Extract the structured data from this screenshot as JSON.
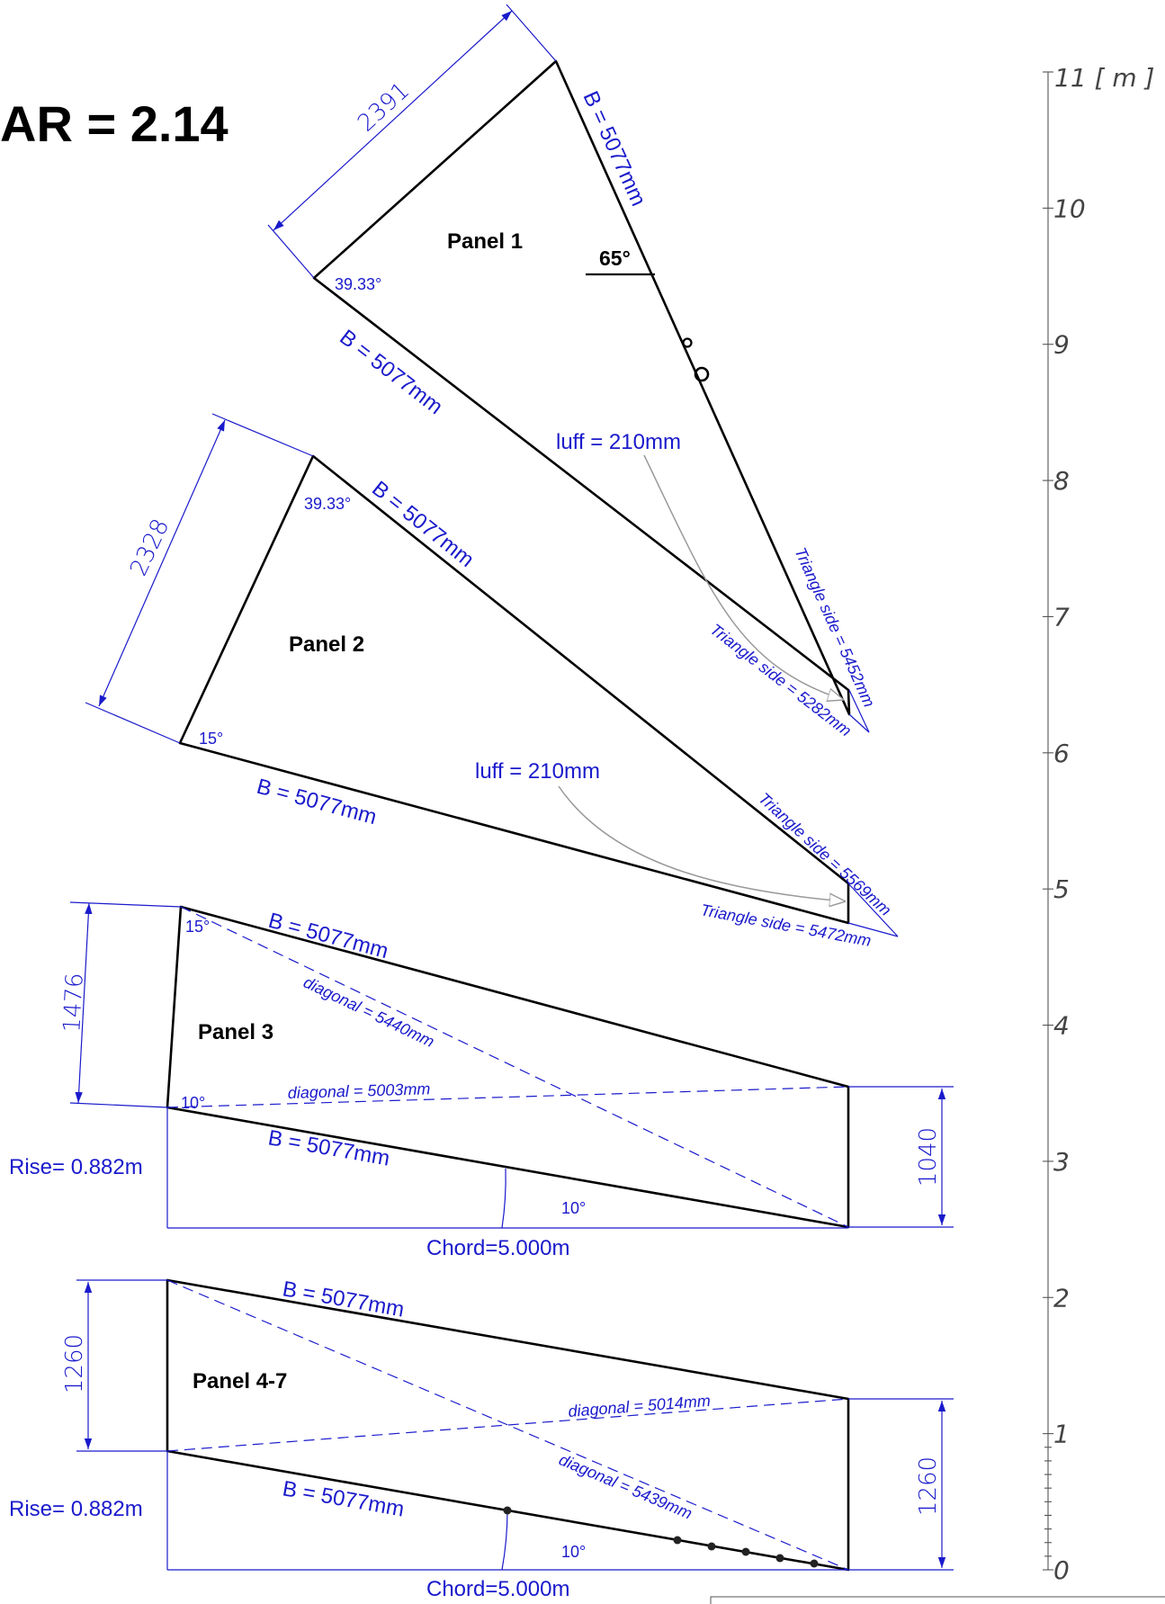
{
  "title": "AR = 2.14",
  "scale": {
    "unit_label": "11 [ m ]",
    "ticks": [
      "10",
      "9",
      "8",
      "7",
      "6",
      "5",
      "4",
      "3",
      "2",
      "1",
      "0"
    ]
  },
  "panel1": {
    "name": "Panel 1",
    "width_dim": "2391",
    "edge_right": "B = 5077mm",
    "edge_bottom": "B = 5077mm",
    "angle_top": "65°",
    "angle_left": "39.33°",
    "luff": "luff = 210mm",
    "triangle_side_a": "Triangle side = 5452mm",
    "triangle_side_b": "Triangle side = 5282mm"
  },
  "panel2": {
    "name": "Panel 2",
    "width_dim": "2328",
    "edge_top": "B = 5077mm",
    "edge_bottom": "B = 5077mm",
    "angle_top": "39.33°",
    "angle_bottom": "15°",
    "luff": "luff = 210mm",
    "triangle_side_a": "Triangle side = 5569mm",
    "triangle_side_b": "Triangle side = 5472mm"
  },
  "panel3": {
    "name": "Panel 3",
    "height_left": "1476",
    "height_right": "1040",
    "edge_top": "B = 5077mm",
    "edge_bottom": "B = 5077mm",
    "diagonal_a": "diagonal = 5440mm",
    "diagonal_b": "diagonal = 5003mm",
    "angle_top": "15°",
    "angle_bottom": "10°",
    "angle_rise": "10°",
    "rise": "Rise= 0.882m",
    "chord": "Chord=5.000m"
  },
  "panel4": {
    "name": "Panel 4-7",
    "height_left": "1260",
    "height_right": "1260",
    "edge_top": "B = 5077mm",
    "edge_bottom": "B = 5077mm",
    "diagonal_a": "diagonal = 5014mm",
    "diagonal_b": "diagonal = 5439mm",
    "angle_rise": "10°",
    "rise": "Rise= 0.882m",
    "chord": "Chord=5.000m"
  }
}
